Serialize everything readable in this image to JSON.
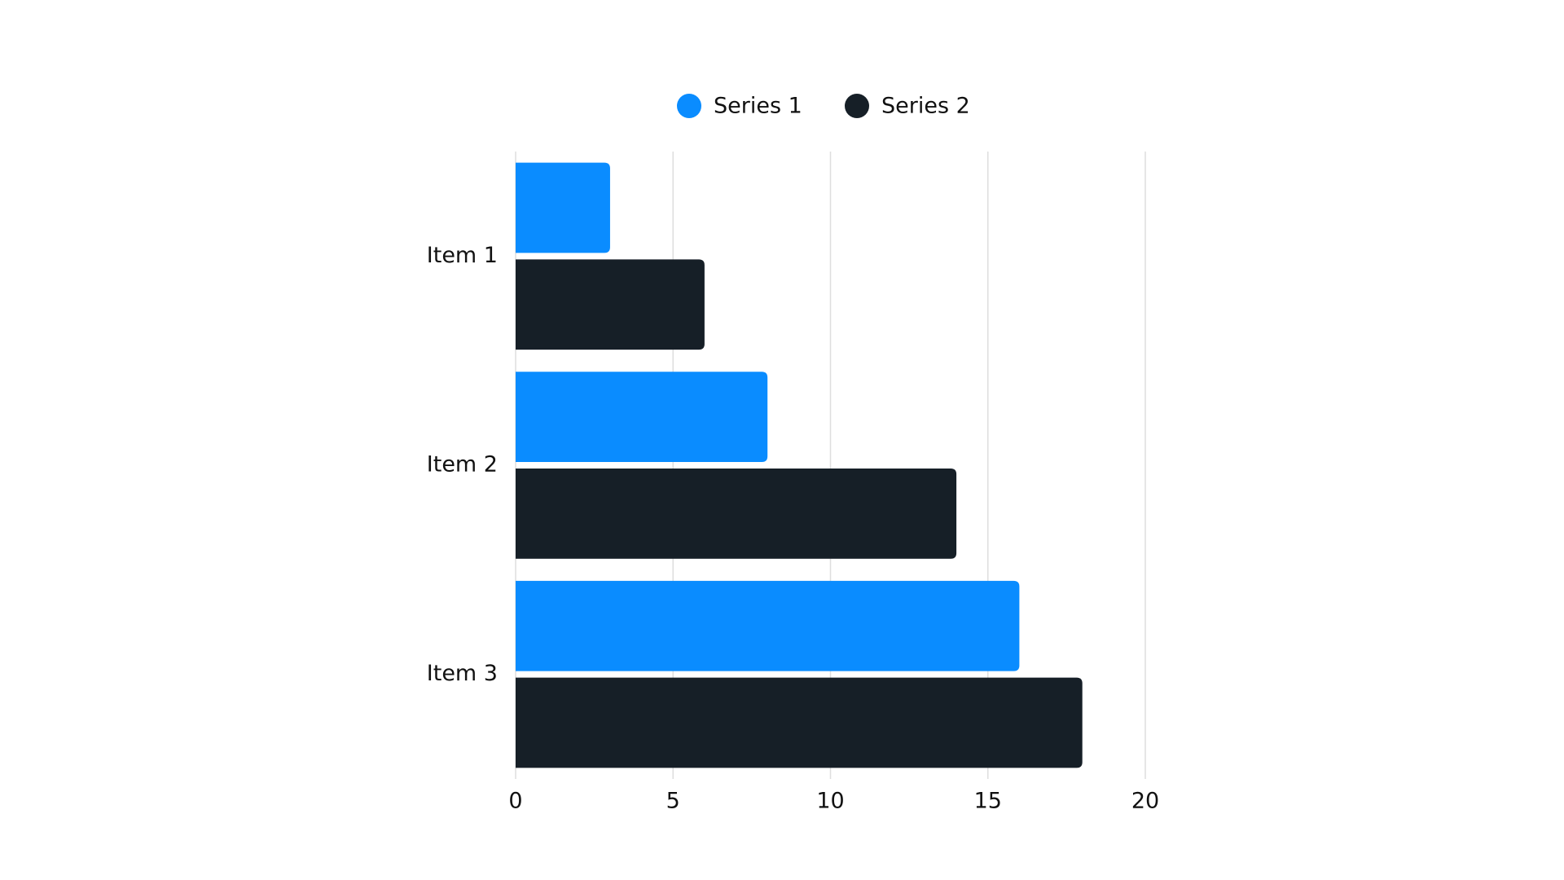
{
  "chart_data": {
    "type": "bar",
    "orientation": "horizontal",
    "categories": [
      "Item 1",
      "Item 2",
      "Item 3"
    ],
    "series": [
      {
        "name": "Series 1",
        "color": "#0a8cff",
        "values": [
          3,
          8,
          16
        ]
      },
      {
        "name": "Series 2",
        "color": "#161f27",
        "values": [
          6,
          14,
          18
        ]
      }
    ],
    "xlim": [
      0,
      20
    ],
    "xticks": [
      0,
      5,
      10,
      15,
      20
    ],
    "grid": true,
    "legend": "top"
  }
}
